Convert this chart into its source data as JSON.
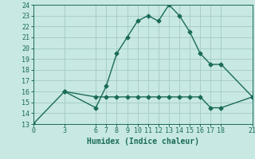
{
  "line1_x": [
    0,
    3,
    6,
    7,
    8,
    9,
    10,
    11,
    12,
    13,
    14,
    15,
    16,
    17,
    18,
    21
  ],
  "line1_y": [
    13,
    16,
    14.5,
    16.5,
    19.5,
    21,
    22.5,
    23,
    22.5,
    24,
    23,
    21.5,
    19.5,
    18.5,
    18.5,
    15.5
  ],
  "line2_x": [
    3,
    6,
    7,
    8,
    9,
    10,
    11,
    12,
    13,
    14,
    15,
    16,
    17,
    18,
    21
  ],
  "line2_y": [
    16,
    15.5,
    15.5,
    15.5,
    15.5,
    15.5,
    15.5,
    15.5,
    15.5,
    15.5,
    15.5,
    15.5,
    14.5,
    14.5,
    15.5
  ],
  "color": "#1a6b5a",
  "bg_color": "#c8e8e3",
  "grid_color": "#a8ceca",
  "xlabel": "Humidex (Indice chaleur)",
  "xlim": [
    0,
    21
  ],
  "ylim": [
    13,
    24
  ],
  "xticks": [
    0,
    3,
    6,
    7,
    8,
    9,
    10,
    11,
    12,
    13,
    14,
    15,
    16,
    17,
    18,
    21
  ],
  "yticks": [
    13,
    14,
    15,
    16,
    17,
    18,
    19,
    20,
    21,
    22,
    23,
    24
  ],
  "xlabel_fontsize": 7,
  "tick_fontsize": 6,
  "line_width": 1.0,
  "marker_size": 2.5
}
